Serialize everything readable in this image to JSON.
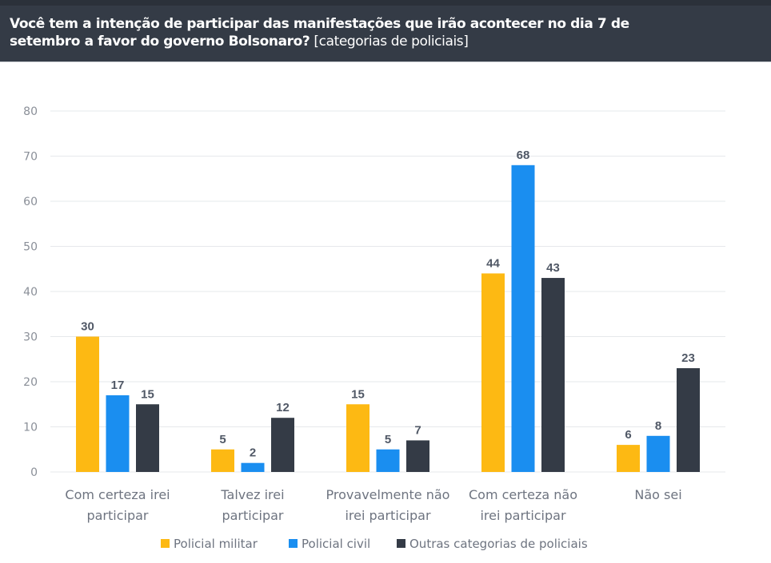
{
  "header": {
    "title_bold": "Você tem a intenção de participar das manifestações que irão acontecer no dia 7 de setembro a favor do governo Bolsonaro?",
    "title_sub": "[categorias de policiais]"
  },
  "chart_data": {
    "type": "bar",
    "title": "Você tem a intenção de participar das manifestações que irão acontecer no dia 7 de setembro a favor do governo Bolsonaro? [categorias de policiais]",
    "xlabel": "",
    "ylabel": "",
    "ylim": [
      0,
      80
    ],
    "yticks": [
      0,
      10,
      20,
      30,
      40,
      50,
      60,
      70,
      80
    ],
    "grid": true,
    "legend_position": "bottom-center",
    "categories": [
      [
        "Com certeza irei",
        "participar"
      ],
      [
        "Talvez irei",
        "participar"
      ],
      [
        "Provavelmente não",
        "irei participar"
      ],
      [
        "Com certeza não",
        "irei participar"
      ],
      [
        "Não sei"
      ]
    ],
    "series": [
      {
        "name": "Policial militar",
        "color": "#fdb913",
        "values": [
          30,
          5,
          15,
          44,
          6
        ]
      },
      {
        "name": "Policial civil",
        "color": "#1a8ef0",
        "values": [
          17,
          2,
          5,
          68,
          8
        ]
      },
      {
        "name": "Outras categorias de policiais",
        "color": "#343b46",
        "values": [
          15,
          12,
          7,
          43,
          23
        ]
      }
    ]
  }
}
